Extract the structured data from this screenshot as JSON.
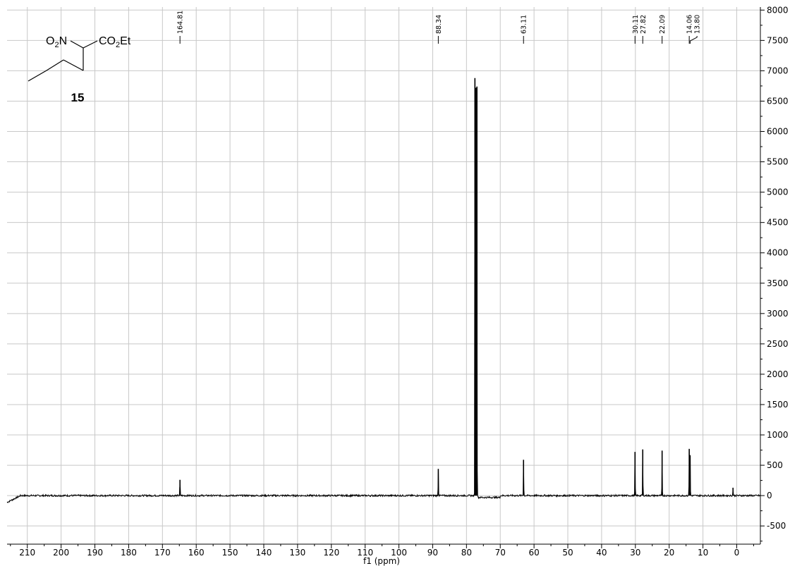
{
  "chart_data": {
    "type": "line",
    "title": "",
    "xlabel": "f1 (ppm)",
    "ylabel": "",
    "xlim": [
      216,
      -7
    ],
    "ylim": [
      -800,
      8050
    ],
    "x_ticks": [
      210,
      200,
      190,
      180,
      170,
      160,
      150,
      140,
      130,
      120,
      110,
      100,
      90,
      80,
      70,
      60,
      50,
      40,
      30,
      20,
      10,
      0
    ],
    "y_ticks": [
      -500,
      0,
      500,
      1000,
      1500,
      2000,
      2500,
      3000,
      3500,
      4000,
      4500,
      5000,
      5500,
      6000,
      6500,
      7000,
      7500,
      8000
    ],
    "grid": true,
    "x_reversed": true,
    "y_axis_side": "right",
    "peak_labels": [
      "164.81",
      "88.34",
      "63.11",
      "30.11",
      "27.82",
      "22.09",
      "14.06",
      "13.80"
    ],
    "peaks": [
      {
        "ppm": 164.81,
        "height": 260
      },
      {
        "ppm": 88.34,
        "height": 440
      },
      {
        "ppm": 77.5,
        "height": 6880
      },
      {
        "ppm": 77.2,
        "height": 6720
      },
      {
        "ppm": 76.9,
        "height": 6740
      },
      {
        "ppm": 63.11,
        "height": 590
      },
      {
        "ppm": 30.11,
        "height": 720
      },
      {
        "ppm": 27.82,
        "height": 760
      },
      {
        "ppm": 22.09,
        "height": 740
      },
      {
        "ppm": 14.06,
        "height": 770
      },
      {
        "ppm": 13.8,
        "height": 660
      },
      {
        "ppm": 1.1,
        "height": 130
      }
    ]
  },
  "structure": {
    "left_group": "O2N",
    "right_group": "CO2Et",
    "compound_number": "15"
  }
}
